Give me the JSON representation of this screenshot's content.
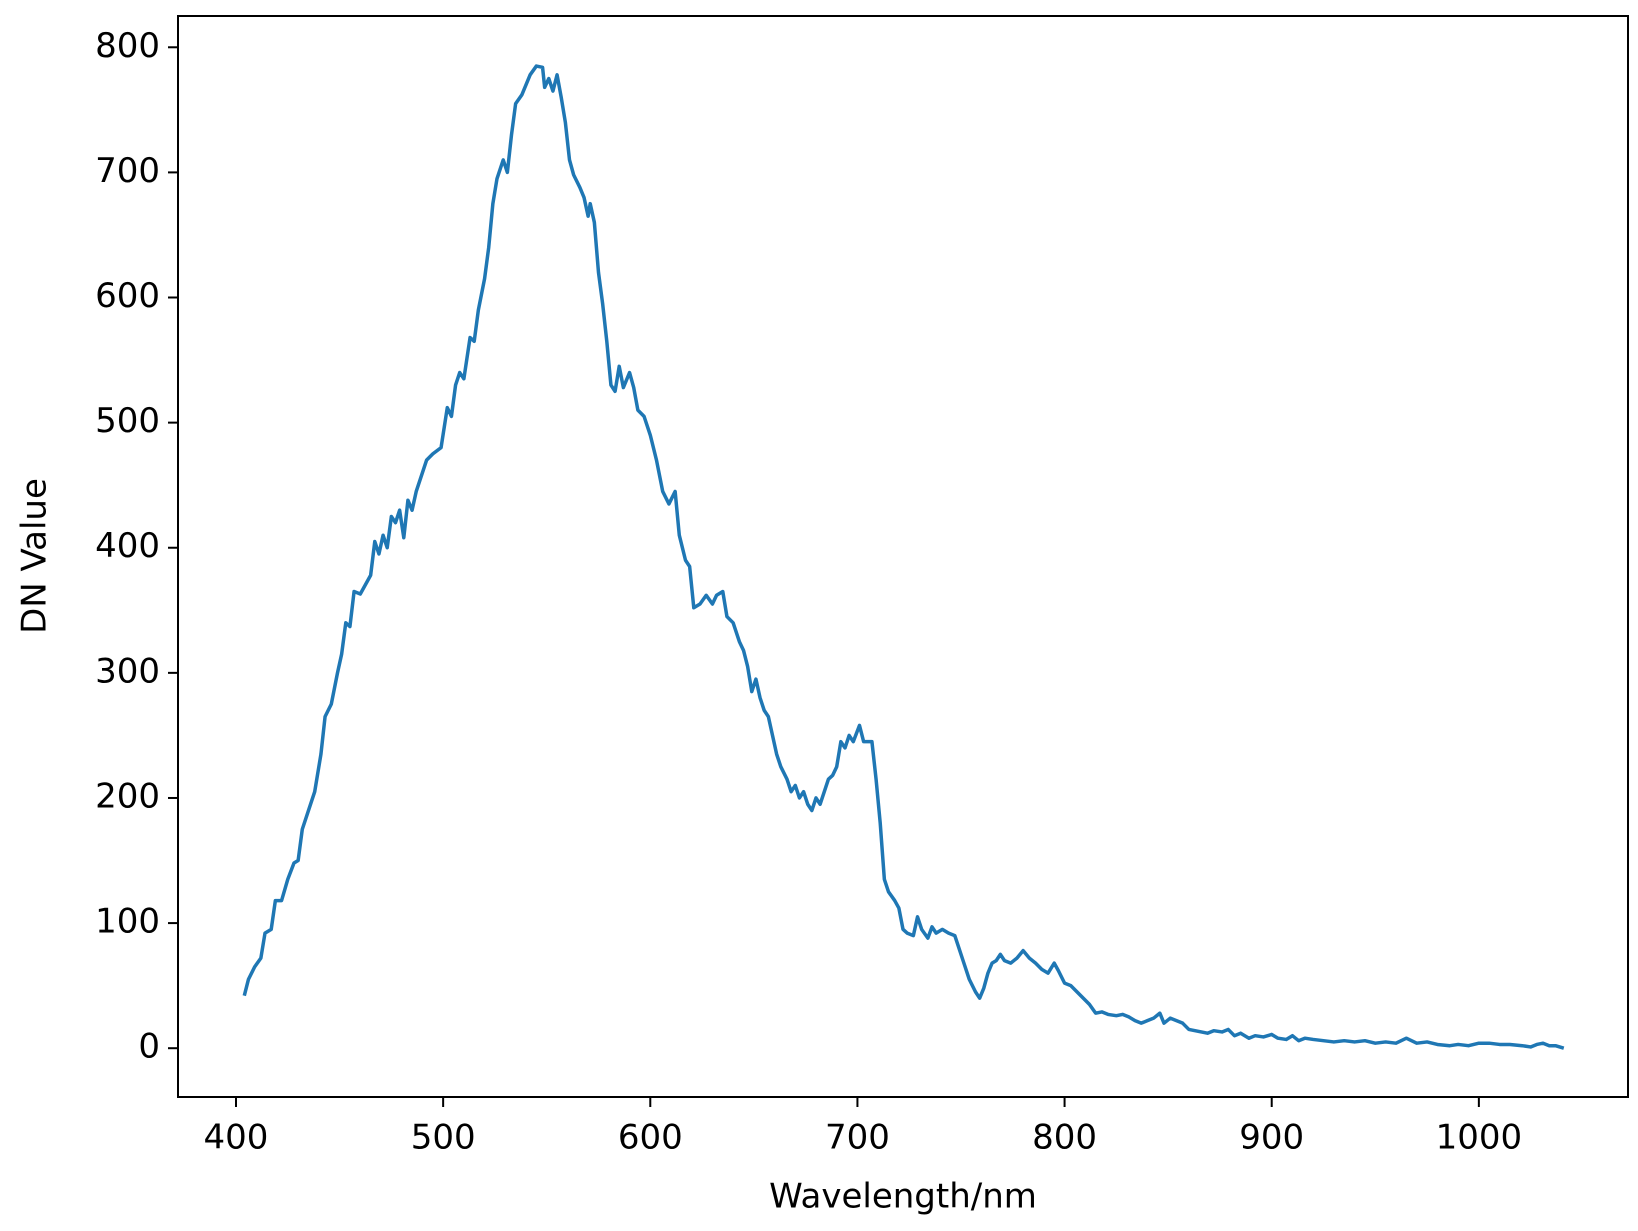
{
  "chart_data": {
    "type": "line",
    "xlabel": "Wavelength/nm",
    "ylabel": "DN Value",
    "xlim": [
      372,
      1072
    ],
    "ylim": [
      -39,
      825
    ],
    "xticks": [
      400,
      500,
      600,
      700,
      800,
      900,
      1000
    ],
    "yticks": [
      0,
      100,
      200,
      300,
      400,
      500,
      600,
      700,
      800
    ],
    "series": [
      {
        "color": "#1f77b4",
        "x": [
          404,
          406,
          409,
          412,
          414,
          417,
          419,
          422,
          425,
          428,
          430,
          432,
          435,
          438,
          441,
          443,
          446,
          449,
          451,
          453,
          455,
          457,
          460,
          463,
          465,
          467,
          469,
          471,
          473,
          475,
          477,
          479,
          481,
          483,
          485,
          487,
          490,
          492,
          495,
          499,
          502,
          504,
          506,
          508,
          510,
          513,
          515,
          517,
          520,
          522,
          524,
          526,
          529,
          531,
          533,
          535,
          538,
          540,
          542,
          545,
          548,
          549,
          551,
          553,
          555,
          557,
          559,
          561,
          563,
          566,
          568,
          570,
          571,
          573,
          575,
          577,
          579,
          581,
          583,
          585,
          587,
          590,
          592,
          594,
          597,
          600,
          603,
          606,
          609,
          612,
          614,
          617,
          619,
          621,
          624,
          627,
          630,
          632,
          635,
          637,
          640,
          643,
          645,
          647,
          649,
          651,
          653,
          655,
          657,
          659,
          661,
          663,
          666,
          668,
          670,
          672,
          674,
          676,
          678,
          680,
          682,
          684,
          686,
          688,
          690,
          692,
          694,
          696,
          698,
          701,
          703,
          705,
          707,
          709,
          711,
          713,
          715,
          718,
          720,
          722,
          724,
          727,
          729,
          731,
          734,
          736,
          738,
          741,
          744,
          747,
          749,
          751,
          754,
          757,
          759,
          761,
          763,
          765,
          767,
          769,
          771,
          774,
          777,
          780,
          783,
          786,
          789,
          792,
          795,
          797,
          800,
          803,
          806,
          809,
          812,
          815,
          818,
          821,
          825,
          828,
          831,
          834,
          837,
          840,
          843,
          846,
          848,
          851,
          854,
          857,
          860,
          863,
          866,
          869,
          872,
          876,
          879,
          882,
          885,
          889,
          892,
          896,
          900,
          903,
          907,
          910,
          913,
          916,
          920,
          925,
          930,
          935,
          940,
          945,
          950,
          955,
          960,
          965,
          970,
          975,
          980,
          986,
          990,
          995,
          1000,
          1005,
          1010,
          1015,
          1021,
          1025,
          1028,
          1031,
          1034,
          1037,
          1041
        ],
        "values": [
          42,
          55,
          65,
          72,
          92,
          95,
          118,
          118,
          135,
          148,
          150,
          175,
          190,
          205,
          235,
          265,
          275,
          300,
          315,
          340,
          337,
          365,
          363,
          372,
          378,
          405,
          395,
          410,
          400,
          425,
          420,
          430,
          408,
          438,
          430,
          445,
          460,
          470,
          475,
          480,
          512,
          505,
          530,
          540,
          535,
          568,
          565,
          590,
          615,
          640,
          675,
          695,
          710,
          700,
          730,
          755,
          762,
          770,
          778,
          785,
          784,
          768,
          775,
          765,
          778,
          760,
          740,
          710,
          698,
          688,
          680,
          665,
          675,
          660,
          620,
          595,
          565,
          530,
          525,
          545,
          528,
          540,
          528,
          510,
          505,
          490,
          470,
          445,
          435,
          445,
          410,
          390,
          385,
          352,
          355,
          362,
          355,
          362,
          365,
          345,
          340,
          325,
          318,
          305,
          285,
          295,
          280,
          270,
          265,
          250,
          235,
          225,
          215,
          205,
          210,
          200,
          205,
          195,
          190,
          200,
          195,
          205,
          215,
          218,
          225,
          245,
          240,
          250,
          245,
          258,
          245,
          245,
          245,
          215,
          180,
          135,
          125,
          118,
          112,
          95,
          92,
          90,
          105,
          95,
          88,
          97,
          92,
          95,
          92,
          90,
          80,
          70,
          55,
          45,
          40,
          48,
          60,
          68,
          70,
          75,
          70,
          68,
          72,
          78,
          72,
          68,
          63,
          60,
          68,
          62,
          52,
          50,
          45,
          40,
          35,
          28,
          29,
          27,
          26,
          27,
          25,
          22,
          20,
          22,
          24,
          28,
          20,
          24,
          22,
          20,
          15,
          14,
          13,
          12,
          14,
          13,
          15,
          10,
          12,
          8,
          10,
          9,
          11,
          8,
          7,
          10,
          6,
          8,
          7,
          6,
          5,
          6,
          5,
          6,
          4,
          5,
          4,
          8,
          4,
          5,
          3,
          2,
          3,
          2,
          4,
          4,
          3,
          3,
          2,
          1,
          3,
          4,
          2,
          2,
          0
        ]
      }
    ]
  }
}
